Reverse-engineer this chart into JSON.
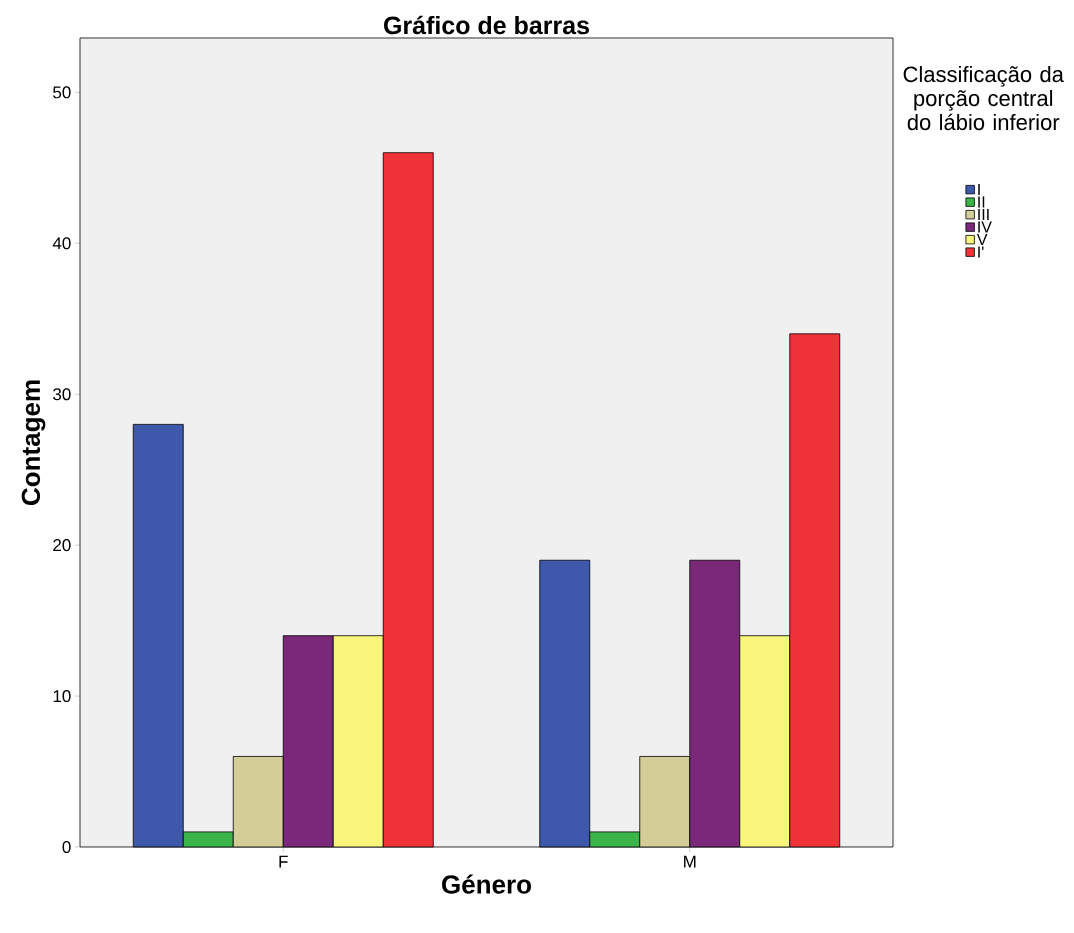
{
  "chart_data": {
    "type": "bar",
    "title": "Gráfico de barras",
    "xlabel": "Género",
    "ylabel": "Contagem",
    "legend_title": "Classificação da porção central do lábio inferior",
    "categories": [
      "F",
      "M"
    ],
    "ylim": [
      0,
      53.6
    ],
    "yticks": [
      0,
      10,
      20,
      30,
      40,
      50
    ],
    "legend": "right",
    "grid": false,
    "series": [
      {
        "name": "I",
        "color": "#3e58ac",
        "values": [
          28,
          19
        ]
      },
      {
        "name": "II",
        "color": "#3bb54a",
        "values": [
          1,
          1
        ]
      },
      {
        "name": "III",
        "color": "#d3ce97",
        "values": [
          6,
          6
        ]
      },
      {
        "name": "IV",
        "color": "#7a287a",
        "values": [
          14,
          19
        ]
      },
      {
        "name": "V",
        "color": "#f8f57a",
        "values": [
          14,
          14
        ]
      },
      {
        "name": "I'",
        "color": "#ef3338",
        "values": [
          46,
          34
        ]
      }
    ]
  }
}
